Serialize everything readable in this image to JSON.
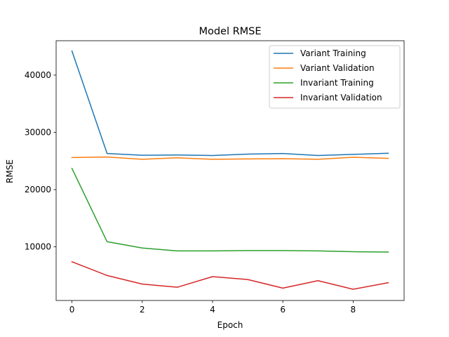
{
  "chart_data": {
    "type": "line",
    "title": "Model RMSE",
    "xlabel": "Epoch",
    "ylabel": "RMSE",
    "x": [
      0,
      1,
      2,
      3,
      4,
      5,
      6,
      7,
      8,
      9
    ],
    "xlim": [
      -0.45,
      9.45
    ],
    "ylim": [
      635,
      46000
    ],
    "xticks": [
      0,
      2,
      4,
      6,
      8
    ],
    "yticks": [
      10000,
      20000,
      30000,
      40000
    ],
    "grid": false,
    "legend_position": "top-right",
    "series": [
      {
        "name": "Variant Training",
        "color": "#1f77b4",
        "values": [
          44200,
          26300,
          26000,
          26050,
          25950,
          26200,
          26300,
          25950,
          26150,
          26350
        ]
      },
      {
        "name": "Variant Validation",
        "color": "#ff7f0e",
        "values": [
          25600,
          25700,
          25300,
          25550,
          25300,
          25350,
          25400,
          25300,
          25650,
          25450
        ]
      },
      {
        "name": "Invariant Training",
        "color": "#2ca02c",
        "values": [
          23700,
          10900,
          9800,
          9300,
          9300,
          9350,
          9350,
          9300,
          9150,
          9100
        ]
      },
      {
        "name": "Invariant Validation",
        "color": "#d62728",
        "values": [
          7400,
          5000,
          3500,
          2950,
          4800,
          4300,
          2800,
          4100,
          2600,
          3750
        ]
      }
    ]
  }
}
